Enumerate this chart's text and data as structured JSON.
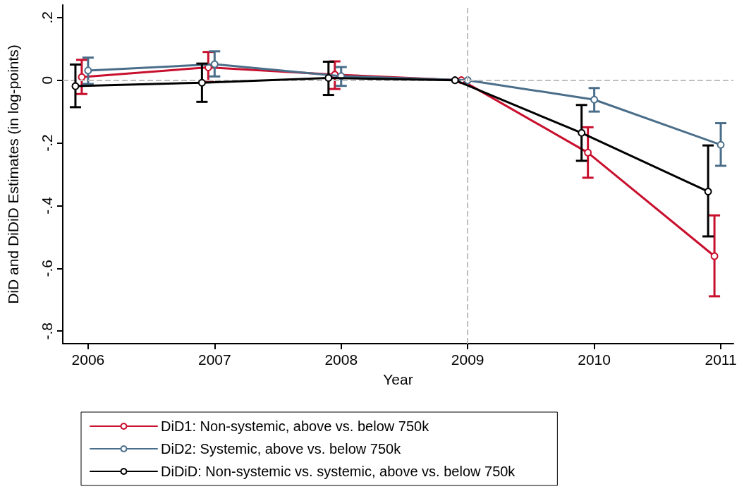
{
  "chart_data": {
    "type": "line",
    "xlabel": "Year",
    "ylabel": "DiD and DiDiD Estimates (in log-points)",
    "xlim": [
      2005.8,
      2011.1
    ],
    "xticks": [
      2006,
      2007,
      2008,
      2009,
      2010,
      2011
    ],
    "ylim": [
      -0.84,
      0.24
    ],
    "yticks": [
      {
        "value": 0.2,
        "label": ".2"
      },
      0,
      {
        "value": -0.2,
        "label": "-.2"
      },
      {
        "value": -0.4,
        "label": "-.4"
      },
      {
        "value": -0.6,
        "label": "-.6"
      },
      {
        "value": -0.8,
        "label": "-.8"
      }
    ],
    "series": [
      {
        "name": "DiD1: Non-systemic, above vs. below 750k",
        "color": "#c8102e",
        "x": [
          2005.95,
          2006.95,
          2007.95,
          2008.95,
          2009.95,
          2010.95
        ],
        "values": [
          0.01,
          0.041,
          0.018,
          0,
          -0.231,
          -0.561
        ],
        "errors": [
          [
            -0.044,
            0.065
          ],
          [
            -0.005,
            0.09
          ],
          [
            -0.028,
            0.06
          ],
          null,
          [
            -0.311,
            -0.15
          ],
          [
            -0.689,
            -0.431
          ]
        ]
      },
      {
        "name": "DiD2: Systemic, above vs. below 750k",
        "color": "#4a6e8a",
        "x": [
          2006,
          2007,
          2008,
          2009,
          2010,
          2011
        ],
        "values": [
          0.031,
          0.051,
          0.013,
          0,
          -0.062,
          -0.206
        ],
        "errors": [
          [
            -0.012,
            0.072
          ],
          [
            0.012,
            0.092
          ],
          [
            -0.018,
            0.042
          ],
          null,
          [
            -0.1,
            -0.025
          ],
          [
            -0.273,
            -0.137
          ]
        ]
      },
      {
        "name": "DiDiD: Non-systemic vs. systemic, above vs. below 750k",
        "color": "#000000",
        "x": [
          2005.9,
          2006.9,
          2007.9,
          2008.9,
          2009.9,
          2010.9
        ],
        "values": [
          -0.019,
          -0.008,
          0.007,
          0,
          -0.168,
          -0.355
        ],
        "errors": [
          [
            -0.086,
            0.05
          ],
          [
            -0.069,
            0.053
          ],
          [
            -0.047,
            0.059
          ],
          null,
          [
            -0.257,
            -0.079
          ],
          [
            -0.498,
            -0.208
          ]
        ]
      }
    ],
    "ref_lines": [
      {
        "axis": "x",
        "value": 2009,
        "label": null,
        "color": "#bfbfbf",
        "line_style": "dashed"
      },
      {
        "axis": "y",
        "value": 0,
        "label": null,
        "color": "#bfbfbf",
        "line_style": "dashed"
      }
    ],
    "marker": "circle",
    "line_style": "solid",
    "grid": false,
    "legend": "bottom"
  }
}
